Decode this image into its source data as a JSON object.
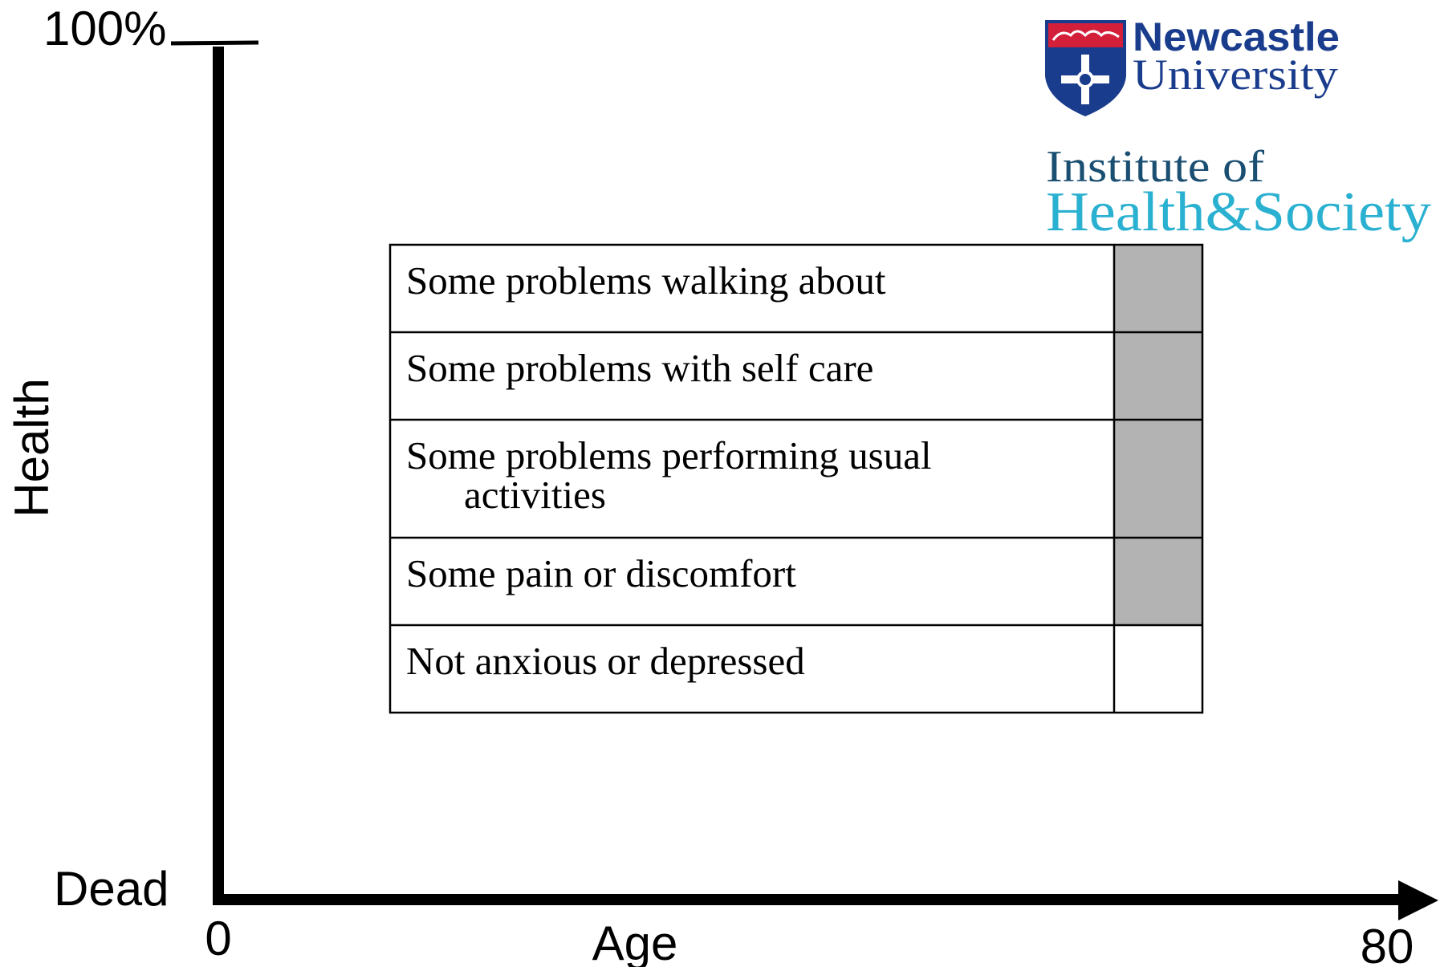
{
  "axes": {
    "y_top": "100%",
    "y_bottom": "Dead",
    "y_label": "Health",
    "x_start": "0",
    "x_end": "80",
    "x_label": "Age"
  },
  "logo": {
    "name_line1": "Newcastle",
    "name_line2": "University",
    "institute_line1": "Institute of",
    "institute_line2": "Health&Society"
  },
  "table": {
    "rows": [
      {
        "lines": [
          "Some problems walking about"
        ],
        "shaded": true
      },
      {
        "lines": [
          "Some problems with self care"
        ],
        "shaded": true
      },
      {
        "lines": [
          "Some problems performing usual",
          "activities"
        ],
        "shaded": true
      },
      {
        "lines": [
          "Some pain or discomfort"
        ],
        "shaded": true
      },
      {
        "lines": [
          "Not anxious or depressed"
        ],
        "shaded": false
      }
    ]
  }
}
